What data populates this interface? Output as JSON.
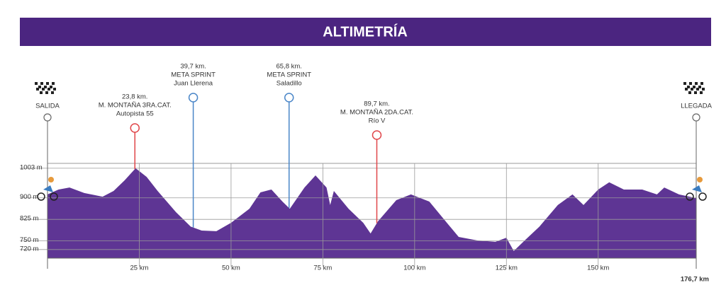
{
  "chart_data": {
    "type": "area",
    "title": "ALTIMETRÍA",
    "x": [
      0,
      3,
      6,
      10,
      15,
      18,
      21,
      24,
      27,
      30,
      35,
      39,
      42,
      46,
      50,
      55,
      58,
      61,
      64,
      66,
      70,
      73,
      76,
      77,
      78,
      82,
      86,
      88,
      90,
      95,
      99,
      104,
      108,
      112,
      117,
      122,
      125,
      127,
      130,
      134,
      139,
      143,
      146,
      150,
      153,
      157,
      162,
      166,
      168,
      172,
      176.7
    ],
    "values": [
      912,
      929,
      936,
      917,
      904,
      924,
      961,
      1003,
      973,
      924,
      850,
      800,
      786,
      784,
      813,
      862,
      919,
      929,
      887,
      862,
      936,
      978,
      936,
      875,
      924,
      862,
      813,
      776,
      818,
      892,
      912,
      887,
      825,
      764,
      752,
      747,
      761,
      715,
      752,
      800,
      875,
      912,
      875,
      929,
      954,
      929,
      929,
      912,
      936,
      912,
      899
    ],
    "color": "#5e3594",
    "xlim": [
      0,
      176.7
    ],
    "xticks": [
      {
        "value": 25,
        "label": "25 km"
      },
      {
        "value": 50,
        "label": "50 km"
      },
      {
        "value": 75,
        "label": "75 km"
      },
      {
        "value": 100,
        "label": "100 km"
      },
      {
        "value": 125,
        "label": "125 km"
      },
      {
        "value": 150,
        "label": "150 km"
      },
      {
        "value": 176.7,
        "label": "176,7 km"
      }
    ],
    "ylim": [
      690,
      1020
    ],
    "yticks": [
      {
        "value": 1003,
        "label": "1003 m"
      },
      {
        "value": 900,
        "label": "900 m"
      },
      {
        "value": 825,
        "label": "825 m"
      },
      {
        "value": 750,
        "label": "750 m"
      },
      {
        "value": 720,
        "label": "720 m"
      }
    ],
    "grid": true,
    "start_label": "SALIDA",
    "end_label": "LLEGADA",
    "annotations": [
      {
        "km": 23.8,
        "lines": [
          "23,8 km.",
          "M. MONTAÑA 3RA.CAT.",
          "Autopista 55"
        ],
        "color": "#e0464a"
      },
      {
        "km": 39.7,
        "lines": [
          "39,7 km.",
          "META SPRINT",
          "Juan Llerena"
        ],
        "color": "#4a86c8"
      },
      {
        "km": 65.8,
        "lines": [
          "65,8 km.",
          "META SPRINT",
          "Saladillo"
        ],
        "color": "#4a86c8"
      },
      {
        "km": 89.7,
        "lines": [
          "89,7 km.",
          "M. MONTAÑA 2DA.CAT.",
          "Río V"
        ],
        "color": "#e0464a"
      }
    ]
  }
}
